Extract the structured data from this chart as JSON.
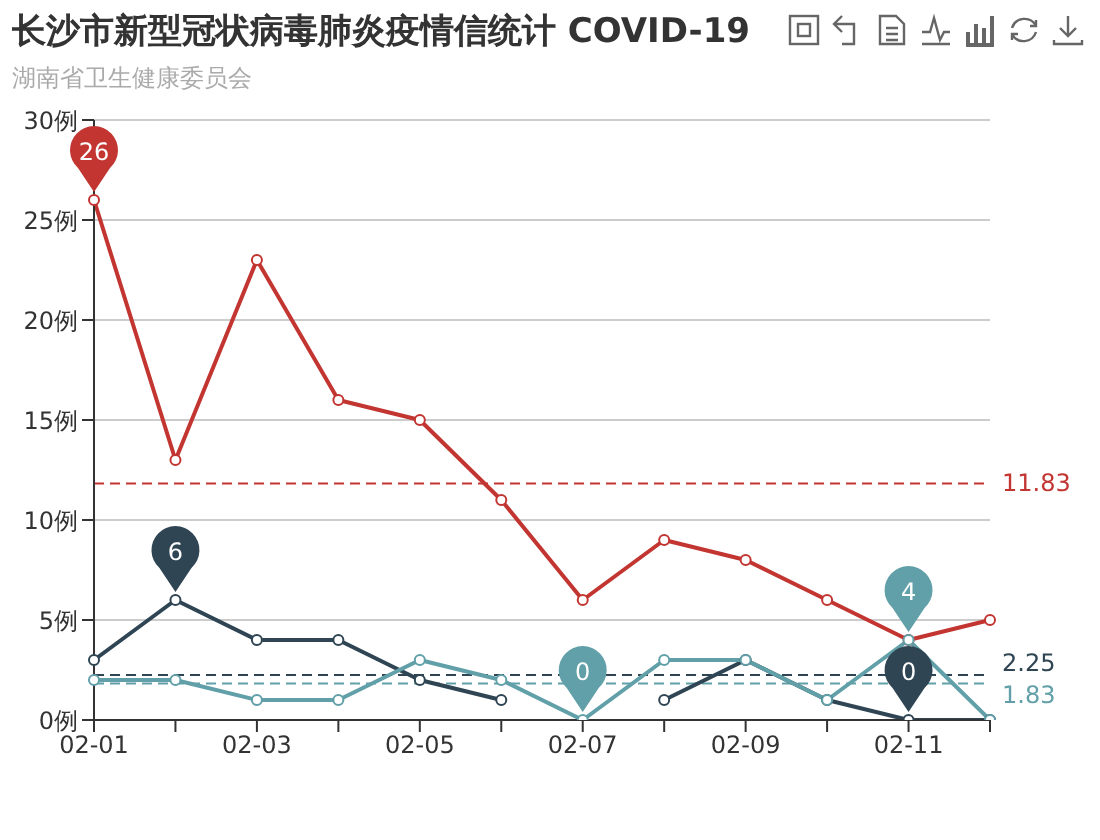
{
  "chart_data": {
    "type": "line",
    "title": "长沙市新型冠状病毒肺炎疫情信统计 COVID-19",
    "subtitle": "湖南省卫生健康委员会",
    "categories": [
      "02-01",
      null,
      "02-03",
      null,
      "02-05",
      null,
      "02-07",
      null,
      "02-09",
      null,
      "02-11",
      null
    ],
    "series": [
      {
        "color": "#c23531",
        "values": [
          26,
          13,
          23,
          16,
          15,
          11,
          6,
          9,
          8,
          6,
          4,
          5
        ],
        "value_labels": [
          "26",
          null,
          null,
          null,
          null,
          null,
          null,
          null,
          null,
          null,
          null,
          null
        ]
      },
      {
        "color": "#2f4554",
        "values": [
          3,
          6,
          4,
          4,
          2,
          1,
          null,
          1,
          3,
          1,
          0,
          0
        ],
        "value_labels": [
          null,
          "6",
          null,
          null,
          null,
          null,
          null,
          null,
          null,
          null,
          "0",
          null
        ]
      },
      {
        "color": "#61a0a8",
        "values": [
          2,
          2,
          1,
          1,
          3,
          2,
          0,
          3,
          3,
          1,
          4,
          0
        ],
        "value_labels": [
          null,
          null,
          null,
          null,
          null,
          null,
          "0",
          null,
          null,
          null,
          "4",
          null
        ]
      }
    ],
    "ylim": [
      0,
      30
    ],
    "yticks": [
      {
        "value": 0,
        "label": "0例"
      },
      {
        "value": 5,
        "label": "5例"
      },
      {
        "value": 10,
        "label": "10例"
      },
      {
        "value": 15,
        "label": "15例"
      },
      {
        "value": 20,
        "label": "20例"
      },
      {
        "value": 25,
        "label": "25例"
      },
      {
        "value": 30,
        "label": "30例"
      }
    ],
    "ref_lines": [
      {
        "axis": "y",
        "value": 11.83,
        "label": "11.83",
        "color": "#c23531",
        "line_style": "dashed"
      },
      {
        "axis": "y",
        "value": 2.25,
        "label": "2.25",
        "color": "#2f4554",
        "line_style": "dashed"
      },
      {
        "axis": "y",
        "value": 1.83,
        "label": "1.83",
        "color": "#61a0a8",
        "line_style": "dashed"
      }
    ],
    "grid": "y",
    "marker": "circle",
    "line_style": "solid",
    "legend": false
  }
}
